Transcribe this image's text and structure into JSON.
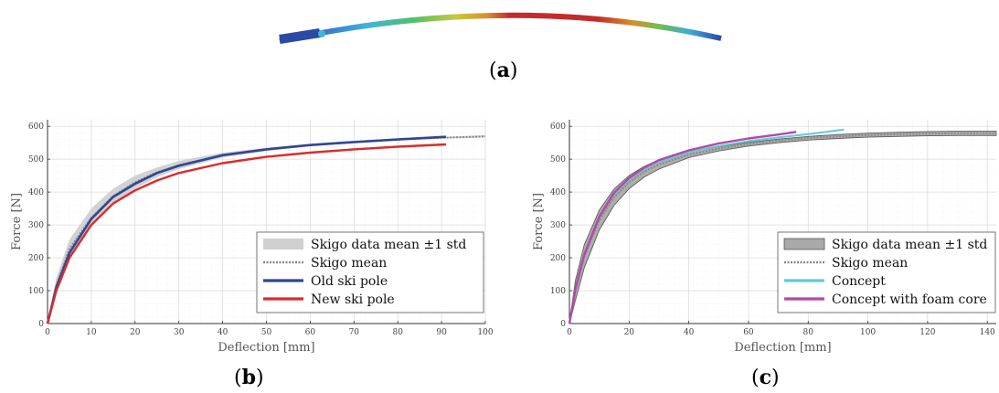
{
  "panels": [
    {
      "label": "a"
    },
    {
      "label": "b"
    },
    {
      "label": "c"
    }
  ],
  "colors": {
    "band_light": "#d0d0d0",
    "band_dark": "#a9a9a9",
    "band_edge": "#555555",
    "mean": "#8a8a8a",
    "old_pole": "#2f4696",
    "new_pole": "#dd2a2a",
    "concept": "#5fcbd6",
    "concept_foam": "#b04aa6"
  },
  "chart_data": [
    {
      "id": "b",
      "type": "line",
      "xlabel": "Deflection [mm]",
      "ylabel": "Force [N]",
      "xlim": [
        0,
        100
      ],
      "ylim": [
        0,
        620
      ],
      "xticks": [
        0,
        10,
        20,
        30,
        40,
        50,
        60,
        70,
        80,
        90,
        100
      ],
      "yticks": [
        0,
        100,
        200,
        300,
        400,
        500,
        600
      ],
      "grid": true,
      "legend_position": "bottom-right",
      "band": {
        "name": "Skigo data mean ±1 std",
        "x": [
          0,
          2,
          5,
          10,
          15,
          20,
          25,
          30,
          40,
          50,
          60,
          70,
          80,
          90,
          100
        ],
        "lower": [
          0,
          90,
          200,
          295,
          365,
          410,
          445,
          470,
          505,
          525,
          540,
          550,
          558,
          563,
          566
        ],
        "upper": [
          0,
          140,
          255,
          350,
          410,
          450,
          475,
          495,
          520,
          535,
          547,
          556,
          563,
          568,
          573
        ]
      },
      "series": [
        {
          "name": "Skigo mean",
          "style": "dashed",
          "x": [
            0,
            2,
            5,
            10,
            15,
            20,
            25,
            30,
            40,
            50,
            60,
            70,
            80,
            90,
            100
          ],
          "y": [
            0,
            115,
            228,
            322,
            388,
            430,
            460,
            482,
            512,
            530,
            543,
            553,
            560,
            565,
            569
          ]
        },
        {
          "name": "Old ski pole",
          "style": "solid",
          "x": [
            0,
            2,
            5,
            10,
            15,
            20,
            25,
            30,
            40,
            50,
            60,
            70,
            80,
            91
          ],
          "y": [
            0,
            110,
            215,
            318,
            385,
            425,
            458,
            480,
            512,
            530,
            543,
            552,
            560,
            568
          ]
        },
        {
          "name": "New ski pole",
          "style": "solid",
          "x": [
            0,
            2,
            5,
            10,
            15,
            20,
            25,
            30,
            40,
            50,
            60,
            70,
            80,
            91
          ],
          "y": [
            0,
            100,
            200,
            300,
            365,
            405,
            435,
            458,
            488,
            507,
            520,
            530,
            538,
            545
          ]
        }
      ]
    },
    {
      "id": "c",
      "type": "line",
      "xlabel": "Deflection [mm]",
      "ylabel": "Force [N]",
      "xlim": [
        0,
        143
      ],
      "ylim": [
        0,
        620
      ],
      "xticks": [
        0,
        20,
        40,
        60,
        80,
        100,
        120,
        140
      ],
      "yticks": [
        0,
        100,
        200,
        300,
        400,
        500,
        600
      ],
      "grid": true,
      "legend_position": "bottom-right",
      "band": {
        "name": "Skigo data mean ±1 std",
        "x": [
          0,
          2,
          5,
          10,
          15,
          20,
          25,
          30,
          40,
          50,
          60,
          70,
          80,
          90,
          100,
          110,
          120,
          130,
          143
        ],
        "lower": [
          0,
          70,
          170,
          285,
          360,
          410,
          445,
          470,
          505,
          525,
          540,
          550,
          558,
          563,
          567,
          569,
          571,
          572,
          572
        ],
        "upper": [
          0,
          130,
          240,
          345,
          410,
          450,
          478,
          498,
          522,
          538,
          551,
          561,
          569,
          575,
          579,
          582,
          584,
          585,
          585
        ]
      },
      "series": [
        {
          "name": "Skigo mean",
          "style": "dashed",
          "x": [
            0,
            2,
            5,
            10,
            15,
            20,
            25,
            30,
            40,
            50,
            60,
            70,
            80,
            90,
            100,
            110,
            120,
            130,
            143
          ],
          "y": [
            0,
            100,
            205,
            315,
            385,
            430,
            462,
            484,
            514,
            532,
            546,
            556,
            564,
            569,
            573,
            576,
            578,
            579,
            579
          ]
        },
        {
          "name": "Concept",
          "style": "solid",
          "x": [
            0,
            2,
            5,
            10,
            15,
            20,
            25,
            30,
            40,
            50,
            60,
            70,
            80,
            92
          ],
          "y": [
            0,
            105,
            210,
            325,
            395,
            440,
            470,
            492,
            522,
            540,
            555,
            566,
            576,
            590
          ]
        },
        {
          "name": "Concept with foam core",
          "style": "solid",
          "x": [
            0,
            2,
            5,
            10,
            15,
            20,
            25,
            30,
            40,
            50,
            60,
            70,
            76
          ],
          "y": [
            0,
            105,
            210,
            325,
            398,
            443,
            474,
            497,
            527,
            548,
            563,
            575,
            583
          ]
        }
      ]
    }
  ]
}
